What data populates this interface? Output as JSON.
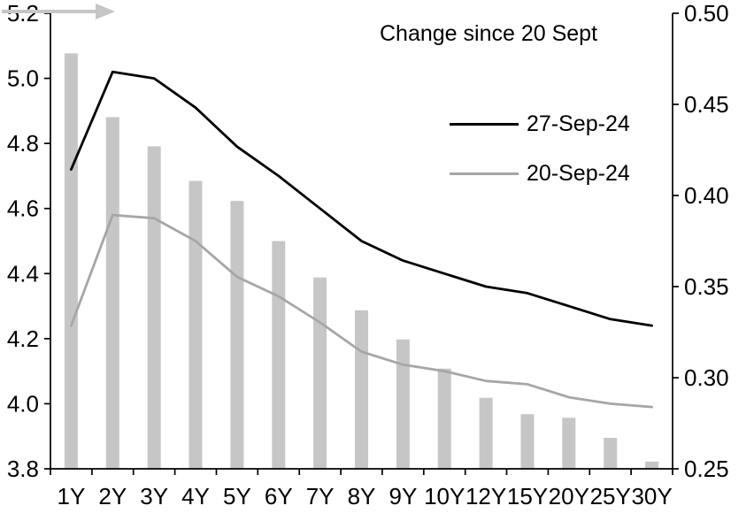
{
  "chart_data": {
    "type": "bar",
    "subtype": "combo-bar-line-dual-axis",
    "categories": [
      "1Y",
      "2Y",
      "3Y",
      "4Y",
      "5Y",
      "6Y",
      "7Y",
      "8Y",
      "9Y",
      "10Y",
      "12Y",
      "15Y",
      "20Y",
      "25Y",
      "30Y"
    ],
    "bar_series": {
      "name": "Change since 20 Sept",
      "axis": "right",
      "color": "#c6c6c6",
      "values": [
        0.478,
        0.443,
        0.427,
        0.408,
        0.397,
        0.375,
        0.355,
        0.337,
        0.321,
        0.305,
        0.289,
        0.28,
        0.278,
        0.267,
        0.254
      ]
    },
    "line_series": [
      {
        "name": "27-Sep-24",
        "axis": "left",
        "color": "#000000",
        "values": [
          4.72,
          5.02,
          5.0,
          4.91,
          4.79,
          4.7,
          4.6,
          4.5,
          4.44,
          4.4,
          4.36,
          4.34,
          4.3,
          4.26,
          4.24
        ]
      },
      {
        "name": "20-Sep-24",
        "axis": "left",
        "color": "#a6a6a6",
        "values": [
          4.24,
          4.58,
          4.57,
          4.5,
          4.39,
          4.33,
          4.25,
          4.16,
          4.12,
          4.1,
          4.07,
          4.06,
          4.02,
          4.0,
          3.99
        ]
      }
    ],
    "left_axis": {
      "min": 3.8,
      "max": 5.2,
      "ticks": [
        "5.2",
        "5.0",
        "4.8",
        "4.6",
        "4.4",
        "4.2",
        "4.0",
        "3.8"
      ]
    },
    "right_axis": {
      "min": 0.25,
      "max": 0.5,
      "ticks": [
        "0.50",
        "0.45",
        "0.40",
        "0.35",
        "0.30",
        "0.25"
      ]
    },
    "title": "",
    "xlabel": "",
    "ylabel_left": "",
    "ylabel_right": "",
    "grid": false,
    "legend_position": "inside-top-right",
    "axis_color": "#000000",
    "background_color": "#ffffff"
  }
}
